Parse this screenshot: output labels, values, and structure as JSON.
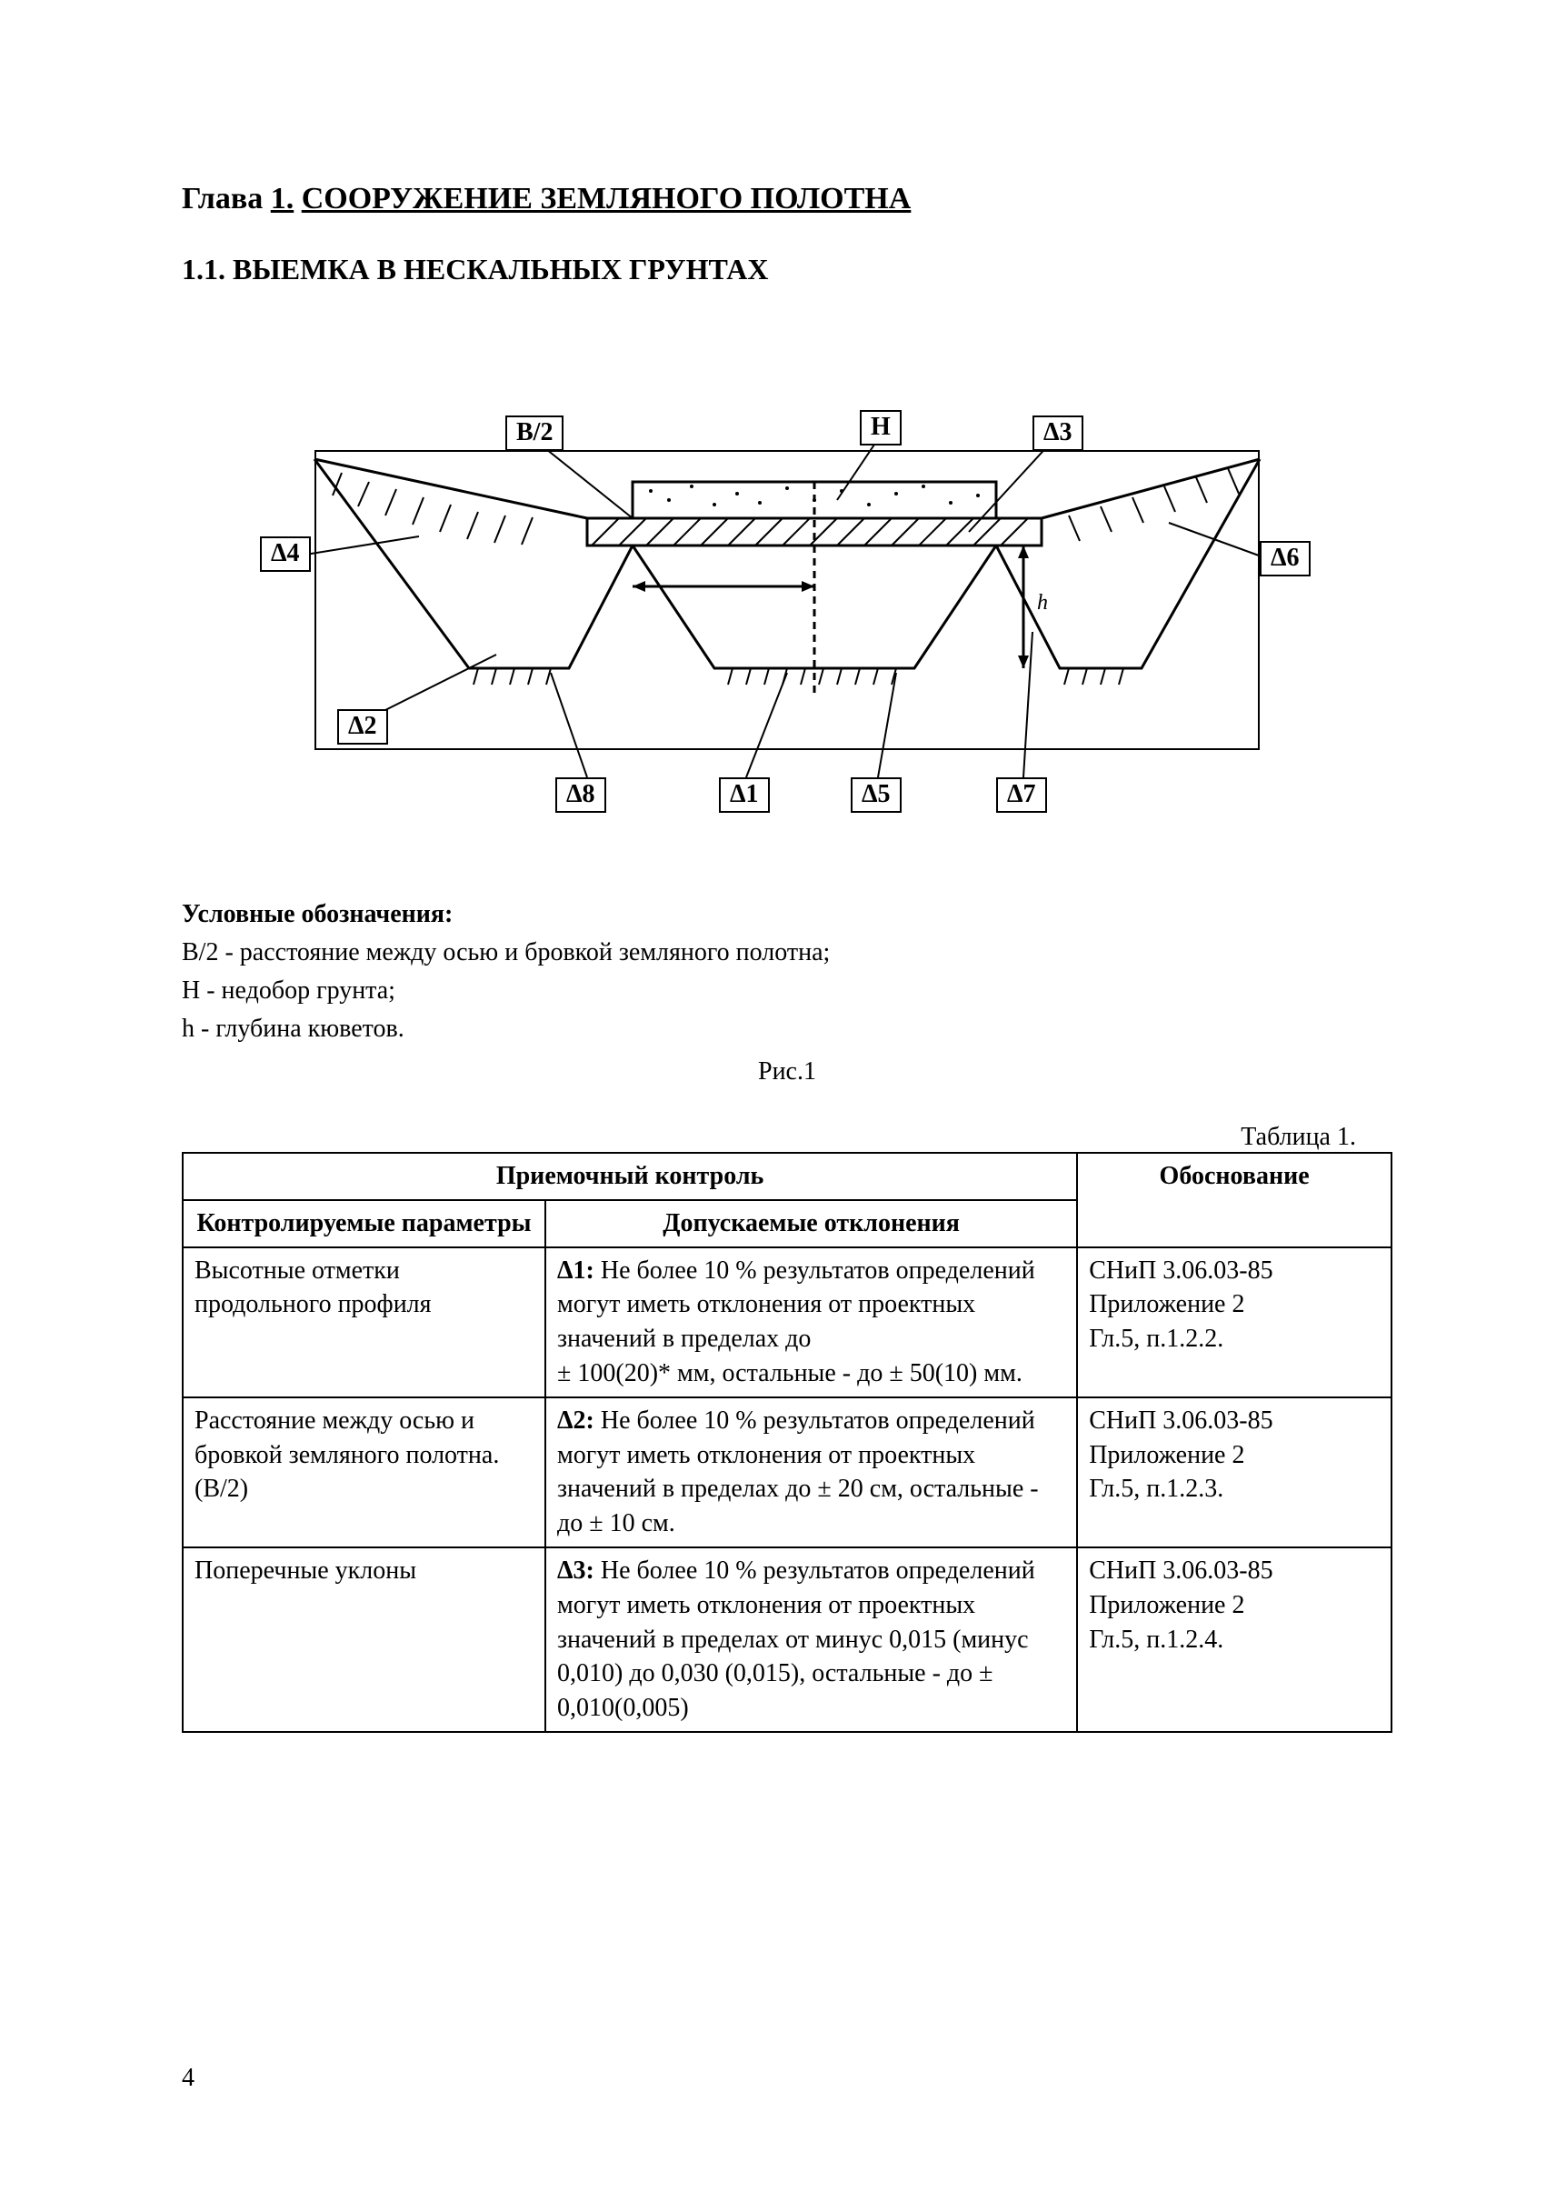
{
  "chapter": {
    "prefix": "Глава",
    "number": "1.",
    "title": "СООРУЖЕНИЕ ЗЕМЛЯНОГО ПОЛОТНА"
  },
  "section": {
    "number": "1.1.",
    "title": "ВЫЕМКА В НЕСКАЛЬНЫХ ГРУНТАХ"
  },
  "figure": {
    "labels": {
      "B2": "В/2",
      "H": "Н",
      "d1": "Δ1",
      "d2": "Δ2",
      "d3": "Δ3",
      "d4": "Δ4",
      "d5": "Δ5",
      "d6": "Δ6",
      "d7": "Δ7",
      "d8": "Δ8"
    },
    "caption": "Рис.1"
  },
  "legend": {
    "title": "Условные обозначения:",
    "items": [
      "В/2 - расстояние между осью и бровкой земляного полотна;",
      "Н - недобор грунта;",
      "h - глубина кюветов."
    ]
  },
  "table": {
    "caption": "Таблица 1.",
    "header": {
      "group": "Приемочный контроль",
      "col1": "Контролируемые параметры",
      "col2": "Допускаемые отклонения",
      "col3": "Обоснование"
    },
    "rows": [
      {
        "param": "Высотные отметки продольного профиля",
        "dev_label": "Δ1:",
        "dev_text": "Не более 10 % результатов определений могут иметь отклонения от проектных значений  в  пределах до\n± 100(20)* мм, остальные - до ±  50(10) мм.",
        "basis": "СНиП 3.06.03-85\nПриложение 2\nГл.5, п.1.2.2."
      },
      {
        "param": "Расстояние между осью и бровкой земляного полотна. (В/2)",
        "dev_label": "Δ2:",
        "dev_text": "Не более 10 % результатов определений могут иметь отклонения от проектных значений в пределах до ± 20 см, остальные - до ± 10 см.",
        "basis": "СНиП 3.06.03-85\nПриложение 2\nГл.5, п.1.2.3."
      },
      {
        "param": "Поперечные уклоны",
        "dev_label": "Δ3:",
        "dev_text": "Не более 10 % результатов определений могут иметь отклонения от проектных значений  в  пределах от минус 0,015 (минус 0,010) до 0,030 (0,015), остальные - до ±  0,010(0,005)",
        "basis": "СНиП 3.06.03-85\nПриложение 2\nГл.5, п.1.2.4."
      }
    ]
  },
  "page_number": "4",
  "colors": {
    "text": "#000000",
    "bg": "#ffffff"
  }
}
